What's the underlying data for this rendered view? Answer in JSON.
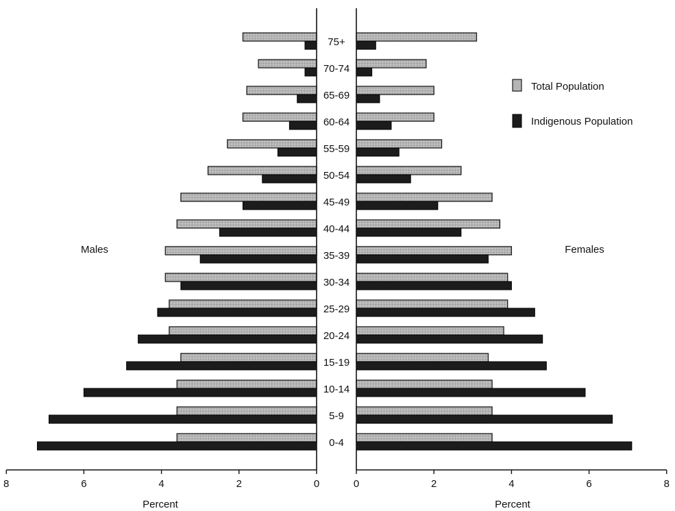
{
  "chart_data": {
    "type": "bar",
    "orientation": "horizontal",
    "layout": "population-pyramid",
    "categories": [
      "75+",
      "70-74",
      "65-69",
      "60-64",
      "55-59",
      "50-54",
      "45-49",
      "40-44",
      "35-39",
      "30-34",
      "25-29",
      "20-24",
      "15-19",
      "10-14",
      "5-9",
      "0-4"
    ],
    "panels": {
      "males": {
        "title": "Males",
        "xlabel": "Percent",
        "xlim": [
          0,
          8
        ],
        "xticks": [
          "8",
          "6",
          "4",
          "2",
          "0"
        ],
        "direction": "right-to-left"
      },
      "females": {
        "title": "Females",
        "xlabel": "Percent",
        "xlim": [
          0,
          8
        ],
        "xticks": [
          "0",
          "2",
          "4",
          "6",
          "8"
        ],
        "direction": "left-to-right"
      }
    },
    "series": [
      {
        "name": "Total Population",
        "color": "#b5b5b5",
        "males": [
          1.9,
          1.5,
          1.8,
          1.9,
          2.3,
          2.8,
          3.5,
          3.6,
          3.9,
          3.9,
          3.8,
          3.8,
          3.5,
          3.6,
          3.6,
          3.6
        ],
        "females": [
          3.1,
          1.8,
          2.0,
          2.0,
          2.2,
          2.7,
          3.5,
          3.7,
          4.0,
          3.9,
          3.9,
          3.8,
          3.4,
          3.5,
          3.5,
          3.5
        ]
      },
      {
        "name": "Indigenous Population",
        "color": "#1c1c1c",
        "males": [
          0.3,
          0.3,
          0.5,
          0.7,
          1.0,
          1.4,
          1.9,
          2.5,
          3.0,
          3.5,
          4.1,
          4.6,
          4.9,
          6.0,
          6.9,
          7.2
        ],
        "females": [
          0.5,
          0.4,
          0.6,
          0.9,
          1.1,
          1.4,
          2.1,
          2.7,
          3.4,
          4.0,
          4.6,
          4.8,
          4.9,
          5.9,
          6.6,
          7.1
        ]
      }
    ],
    "legend": {
      "placement": "top-right",
      "entries": [
        "Total Population",
        "Indigenous Population"
      ]
    },
    "grid": false
  }
}
